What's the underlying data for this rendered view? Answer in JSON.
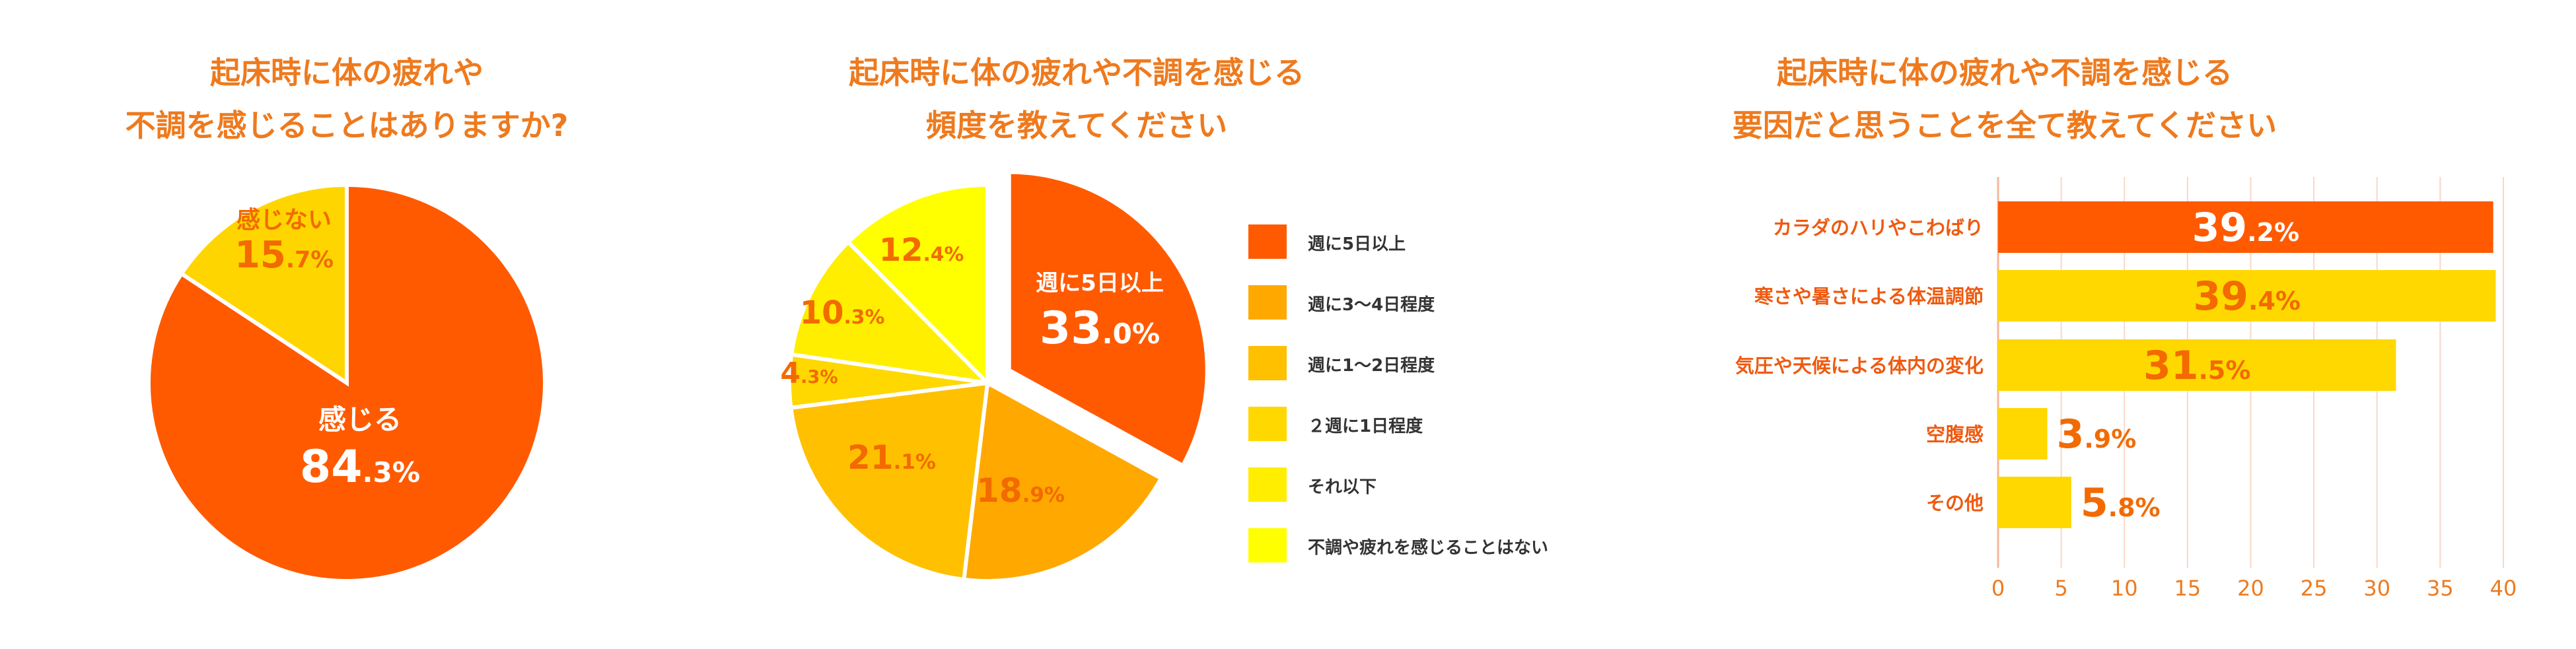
{
  "chart_data": [
    {
      "type": "pie",
      "title": [
        "起床時に体の疲れや",
        "不調を感じることはありますか?"
      ],
      "slices": [
        {
          "label": "感じる",
          "value": 84.3,
          "value_int": "84",
          "value_dec": ".3%",
          "color": "#ff5a00",
          "text_color": "#ffffff"
        },
        {
          "label": "感じない",
          "value": 15.7,
          "value_int": "15",
          "value_dec": ".7%",
          "color": "#ffd500",
          "text_color": "#f26a00"
        }
      ]
    },
    {
      "type": "pie",
      "title": [
        "起床時に体の疲れや不調を感じる",
        "頻度を教えてください"
      ],
      "slices": [
        {
          "label": "週に5日以上",
          "value": 33.0,
          "value_int": "33",
          "value_dec": ".0%",
          "color": "#ff5a00",
          "text_color": "#ffffff",
          "exploded": true
        },
        {
          "label": "週に3〜4日程度",
          "value": 18.9,
          "value_int": "18",
          "value_dec": ".9%",
          "color": "#ffa800",
          "text_color": "#f26a00"
        },
        {
          "label": "週に1〜2日程度",
          "value": 21.1,
          "value_int": "21",
          "value_dec": ".1%",
          "color": "#ffc000",
          "text_color": "#f26a00"
        },
        {
          "label": "２週に1日程度",
          "value": 4.3,
          "value_int": "4",
          "value_dec": ".3%",
          "color": "#ffd800",
          "text_color": "#f26a00"
        },
        {
          "label": "それ以下",
          "value": 10.3,
          "value_int": "10",
          "value_dec": ".3%",
          "color": "#ffee00",
          "text_color": "#f26a00"
        },
        {
          "label": "不調や疲れを感じることはない",
          "value": 12.4,
          "value_int": "12",
          "value_dec": ".4%",
          "color": "#ffff00",
          "text_color": "#f26a00"
        }
      ]
    },
    {
      "type": "bar",
      "orientation": "horizontal",
      "title": [
        "起床時に体の疲れや不調を感じる",
        "要因だと思うことを全て教えてください"
      ],
      "categories": [
        "カラダのハリやこわばり",
        "寒さや暑さによる体温調節",
        "気圧や天候による体内の変化",
        "空腹感",
        "その他"
      ],
      "values": [
        39.2,
        39.4,
        31.5,
        3.9,
        5.8
      ],
      "value_int": [
        "39",
        "39",
        "31",
        "3",
        "5"
      ],
      "value_dec": [
        ".2%",
        ".4%",
        ".5%",
        ".9%",
        ".8%"
      ],
      "colors": [
        "#ff5a00",
        "#ffd800",
        "#ffd800",
        "#ffd800",
        "#ffd800"
      ],
      "xlim": [
        0,
        40
      ],
      "xticks": [
        "0",
        "5",
        "10",
        "15",
        "20",
        "25",
        "30",
        "35",
        "40"
      ]
    }
  ]
}
